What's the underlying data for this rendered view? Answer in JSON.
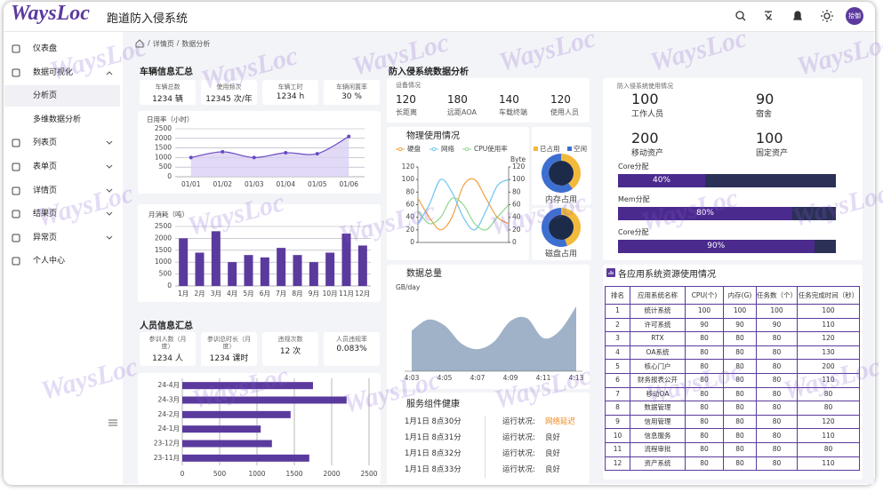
{
  "header": {
    "logo": "WaysLoc",
    "title": "跑道防入侵系统",
    "avatar": "拾御"
  },
  "watermark": "WaysLoc",
  "sidebar": {
    "items": [
      {
        "label": "仪表盘",
        "level": 1
      },
      {
        "label": "数据可视化",
        "level": 1,
        "expandable": true,
        "expanded": true
      },
      {
        "label": "分析页",
        "level": 2,
        "active": true
      },
      {
        "label": "多维数据分析",
        "level": 2
      },
      {
        "label": "列表页",
        "level": 1,
        "expandable": true
      },
      {
        "label": "表单页",
        "level": 1,
        "expandable": true
      },
      {
        "label": "详情页",
        "level": 1,
        "expandable": true
      },
      {
        "label": "结果页",
        "level": 1,
        "expandable": true
      },
      {
        "label": "异常页",
        "level": 1,
        "expandable": true
      },
      {
        "label": "个人中心",
        "level": 1
      }
    ]
  },
  "breadcrumb": {
    "separator": "/",
    "items": [
      "详情页",
      "数据分析"
    ]
  },
  "vehicle": {
    "title": "车辆信息汇总",
    "stats": [
      {
        "label": "车辆总数",
        "value": "1234 辆"
      },
      {
        "label": "使用频次",
        "value": "12345 次/年"
      },
      {
        "label": "车辆工时",
        "value": "1234 h"
      },
      {
        "label": "车辆闲置率",
        "value": "30 %"
      }
    ]
  },
  "person": {
    "title": "人员信息汇总",
    "stats": [
      {
        "label": "参训人数（月度）",
        "value": "1234 人"
      },
      {
        "label": "参训总时长（月度）",
        "value": "1234 课时"
      },
      {
        "label": "违规次数",
        "value": "12 次"
      },
      {
        "label": "人员违规率",
        "value": "0.083%"
      }
    ]
  },
  "analysis_title": "防入侵系统数据分析",
  "devices": {
    "title": "设备情况",
    "items": [
      {
        "value": "120",
        "label": "长距离"
      },
      {
        "value": "180",
        "label": "远距AOA"
      },
      {
        "value": "140",
        "label": "车载终端"
      },
      {
        "value": "120",
        "label": "使用人员"
      }
    ]
  },
  "resources": {
    "title": "防入侵系统使用情况",
    "items": [
      {
        "value": "100",
        "label": "工作人员"
      },
      {
        "value": "90",
        "label": "宿舍"
      },
      {
        "value": "200",
        "label": "移动资产"
      },
      {
        "value": "100",
        "label": "固定资产"
      }
    ],
    "bars": {
      "labels": [
        "Core分配",
        "Mem分配",
        "Core分配"
      ],
      "values": [
        40,
        80,
        90
      ],
      "value_labels": [
        "40%",
        "80%",
        "90%"
      ],
      "color": "#4b2a8e",
      "track": "#2b3057"
    }
  },
  "services": {
    "title": "服务组件健康",
    "status_label": "运行状况:",
    "rows": [
      {
        "time": "1月1日 8点30分",
        "status": "网络延迟",
        "color": "#f08a24"
      },
      {
        "time": "1月1日 8点31分",
        "status": "良好",
        "color": "#444"
      },
      {
        "time": "1月1日 8点32分",
        "status": "良好",
        "color": "#444"
      },
      {
        "time": "1月1日 8点33分",
        "status": "良好",
        "color": "#444"
      }
    ]
  },
  "table": {
    "title": "各应用系统资源使用情况",
    "headers": [
      "排名",
      "应用系统名称",
      "CPU(个)",
      "内存(G)",
      "任务数（个）",
      "任务完成时间（秒）"
    ],
    "rows": [
      [
        1,
        "统计系统",
        100,
        100,
        100,
        100
      ],
      [
        2,
        "许可系统",
        90,
        90,
        90,
        110
      ],
      [
        3,
        "RTX",
        80,
        80,
        80,
        120
      ],
      [
        4,
        "OA系统",
        80,
        80,
        80,
        130
      ],
      [
        5,
        "核心门户",
        80,
        80,
        80,
        200
      ],
      [
        6,
        "财务报表公开",
        80,
        80,
        80,
        110
      ],
      [
        7,
        "移动OA",
        80,
        80,
        80,
        80
      ],
      [
        8,
        "数据管理",
        80,
        80,
        80,
        80
      ],
      [
        9,
        "信用管理",
        80,
        80,
        80,
        120
      ],
      [
        10,
        "信息服务",
        80,
        80,
        80,
        110
      ],
      [
        11,
        "流程审批",
        80,
        80,
        80,
        80
      ],
      [
        12,
        "资产系统",
        80,
        80,
        80,
        110
      ]
    ]
  },
  "chart_data": [
    {
      "type": "line",
      "ylabel": "日用率（小时）",
      "categories": [
        "01/01",
        "01/02",
        "01/03",
        "01/04",
        "01/05",
        "01/06"
      ],
      "values": [
        1000,
        1300,
        1000,
        1250,
        1200,
        2100
      ],
      "color": "#6a48c2",
      "area_color": "#d9cff2",
      "ylim": [
        0,
        2500
      ],
      "yticks": [
        0,
        500,
        1000,
        1500,
        2000,
        2500
      ],
      "grid": true
    },
    {
      "type": "bar",
      "ylabel": "月消耗（吨）",
      "categories": [
        "1月",
        "2月",
        "3月",
        "4月",
        "5月",
        "6月",
        "7月",
        "8月",
        "9月",
        "10月",
        "11月",
        "12月"
      ],
      "values": [
        2000,
        1400,
        2300,
        1000,
        1300,
        1200,
        1600,
        1300,
        1000,
        1400,
        2200,
        1700
      ],
      "color": "#5b3a9e",
      "ylim": [
        0,
        2500
      ],
      "yticks": [
        0,
        500,
        1000,
        1500,
        2000,
        2500
      ],
      "grid": true
    },
    {
      "type": "bar",
      "orientation": "horizontal",
      "categories": [
        "24-4月",
        "24-3月",
        "24-2月",
        "24-1月",
        "23-12月",
        "23-11月"
      ],
      "values": [
        1750,
        2200,
        1450,
        1050,
        1200,
        1700
      ],
      "color": "#5b3a9e",
      "xlim": [
        0,
        2500
      ],
      "xticks": [
        0,
        500,
        1000,
        1500,
        2000,
        2500
      ],
      "grid": true
    },
    {
      "type": "line",
      "title": "物理使用情况",
      "series": [
        {
          "name": "硬盘",
          "color": "#f0a040",
          "values": [
            70,
            40,
            20,
            40,
            90,
            100,
            70,
            40,
            30
          ]
        },
        {
          "name": "网络",
          "color": "#6ec6f0",
          "axis": "y2",
          "values": [
            30,
            60,
            100,
            80,
            40,
            20,
            50,
            90,
            100
          ]
        },
        {
          "name": "CPU使用率",
          "color": "#8fd68f",
          "values": [
            50,
            30,
            40,
            70,
            60,
            30,
            20,
            40,
            60
          ]
        }
      ],
      "ylim": [
        0,
        120
      ],
      "yticks": [
        0,
        20,
        40,
        60,
        80,
        100,
        120
      ],
      "y2label": "Byte",
      "y2lim": [
        0,
        120
      ],
      "y2ticks": [
        0,
        20,
        40,
        60,
        80,
        100,
        120
      ]
    },
    {
      "type": "pie",
      "title": "内存占用",
      "categories": [
        "已占用",
        "空闲"
      ],
      "values": [
        40,
        60
      ],
      "colors": [
        "#f2b93b",
        "#3d6fd1"
      ]
    },
    {
      "type": "pie",
      "title": "磁盘占用",
      "categories": [
        "已占用",
        "空闲"
      ],
      "values": [
        45,
        55
      ],
      "colors": [
        "#f2b93b",
        "#3d6fd1"
      ]
    },
    {
      "type": "area",
      "title": "数据总量",
      "ylabel": "GB/day",
      "categories": [
        "4:03",
        null,
        "4:05",
        null,
        "4:07",
        null,
        "4:09",
        null,
        "4:11",
        null,
        "4:13"
      ],
      "values": [
        55,
        70,
        62,
        38,
        30,
        40,
        68,
        72,
        45,
        55,
        88
      ],
      "color": "#9fb2c8",
      "ylim": [
        0,
        100
      ]
    }
  ]
}
